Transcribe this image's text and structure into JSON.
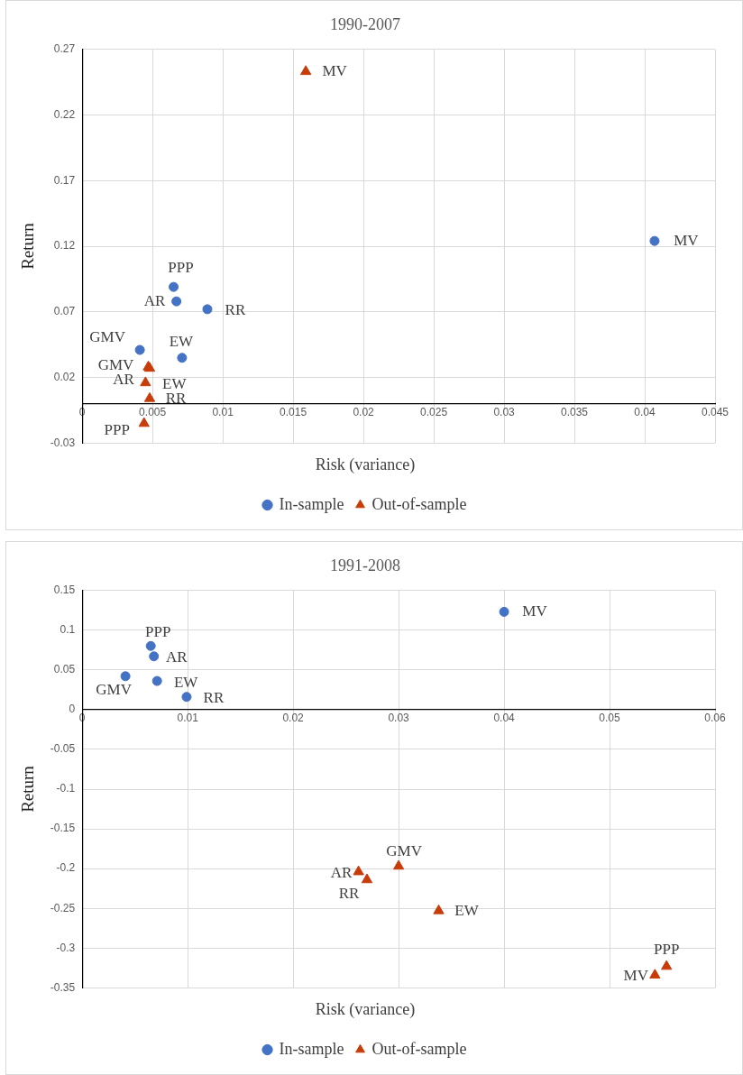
{
  "chart_data": [
    {
      "type": "scatter",
      "title": "1990-2007",
      "xlabel": "Risk (variance)",
      "ylabel": "Return",
      "xlim": [
        0,
        0.045
      ],
      "xticks": [
        0,
        0.005,
        0.01,
        0.015,
        0.02,
        0.025,
        0.03,
        0.035,
        0.04,
        0.045
      ],
      "ylim": [
        -0.03,
        0.27
      ],
      "yticks": [
        -0.03,
        0.02,
        0.07,
        0.12,
        0.17,
        0.22,
        0.27
      ],
      "grid": true,
      "legend": "bottom",
      "series": [
        {
          "name": "In-sample",
          "color": "#4472c4",
          "marker": "circle",
          "x": [
            0.0407,
            0.0065,
            0.0067,
            0.0089,
            0.0041,
            0.0071
          ],
          "values": [
            0.124,
            0.089,
            0.078,
            0.072,
            0.041,
            0.035
          ]
        },
        {
          "name": "Out-of-sample",
          "color": "#c83c0a",
          "marker": "triangle",
          "x": [
            0.0159,
            0.0047,
            0.0048,
            0.0045,
            0.0048,
            0.0044
          ],
          "values": [
            0.253,
            0.028,
            0.027,
            0.016,
            0.004,
            -0.015
          ]
        }
      ],
      "annotations": [
        {
          "text": "MV",
          "x": 0.0407,
          "y": 0.124
        },
        {
          "text": "PPP",
          "x": 0.0065,
          "y": 0.089
        },
        {
          "text": "AR",
          "x": 0.0067,
          "y": 0.078
        },
        {
          "text": "RR",
          "x": 0.0089,
          "y": 0.072
        },
        {
          "text": "GMV",
          "x": 0.0041,
          "y": 0.041
        },
        {
          "text": "EW",
          "x": 0.0071,
          "y": 0.035
        },
        {
          "text": "MV",
          "x": 0.0159,
          "y": 0.253
        },
        {
          "text": "GMV",
          "x": 0.0047,
          "y": 0.028
        },
        {
          "text": "AR",
          "x": 0.0048,
          "y": 0.027
        },
        {
          "text": "EW",
          "x": 0.0045,
          "y": 0.016
        },
        {
          "text": "RR",
          "x": 0.0048,
          "y": 0.004
        },
        {
          "text": "PPP",
          "x": 0.0044,
          "y": -0.015
        }
      ]
    },
    {
      "type": "scatter",
      "title": "1991-2008",
      "xlabel": "Risk (variance)",
      "ylabel": "Return",
      "xlim": [
        0,
        0.06
      ],
      "xticks": [
        0,
        0.01,
        0.02,
        0.03,
        0.04,
        0.05,
        0.06
      ],
      "ylim": [
        -0.35,
        0.15
      ],
      "yticks": [
        -0.35,
        -0.3,
        -0.25,
        -0.2,
        -0.15,
        -0.1,
        -0.05,
        0,
        0.05,
        0.1,
        0.15
      ],
      "grid": true,
      "legend": "bottom",
      "series": [
        {
          "name": "In-sample",
          "color": "#4472c4",
          "marker": "circle",
          "x": [
            0.04,
            0.0065,
            0.0068,
            0.0041,
            0.0071,
            0.0099
          ],
          "values": [
            0.123,
            0.08,
            0.067,
            0.042,
            0.036,
            0.016
          ]
        },
        {
          "name": "Out-of-sample",
          "color": "#c83c0a",
          "marker": "triangle",
          "x": [
            0.0262,
            0.027,
            0.03,
            0.0338,
            0.0554,
            0.0543
          ],
          "values": [
            -0.204,
            -0.214,
            -0.197,
            -0.253,
            -0.323,
            -0.334
          ]
        }
      ],
      "annotations": [
        {
          "text": "MV",
          "x": 0.04,
          "y": 0.123
        },
        {
          "text": "PPP",
          "x": 0.0065,
          "y": 0.08
        },
        {
          "text": "AR",
          "x": 0.0068,
          "y": 0.067
        },
        {
          "text": "GMV",
          "x": 0.0041,
          "y": 0.042
        },
        {
          "text": "EW",
          "x": 0.0071,
          "y": 0.036
        },
        {
          "text": "RR",
          "x": 0.0099,
          "y": 0.016
        },
        {
          "text": "AR",
          "x": 0.0262,
          "y": -0.204
        },
        {
          "text": "RR",
          "x": 0.027,
          "y": -0.214
        },
        {
          "text": "GMV",
          "x": 0.03,
          "y": -0.197
        },
        {
          "text": "EW",
          "x": 0.0338,
          "y": -0.253
        },
        {
          "text": "PPP",
          "x": 0.0554,
          "y": -0.323
        },
        {
          "text": "MV",
          "x": 0.0543,
          "y": -0.334
        }
      ]
    }
  ]
}
